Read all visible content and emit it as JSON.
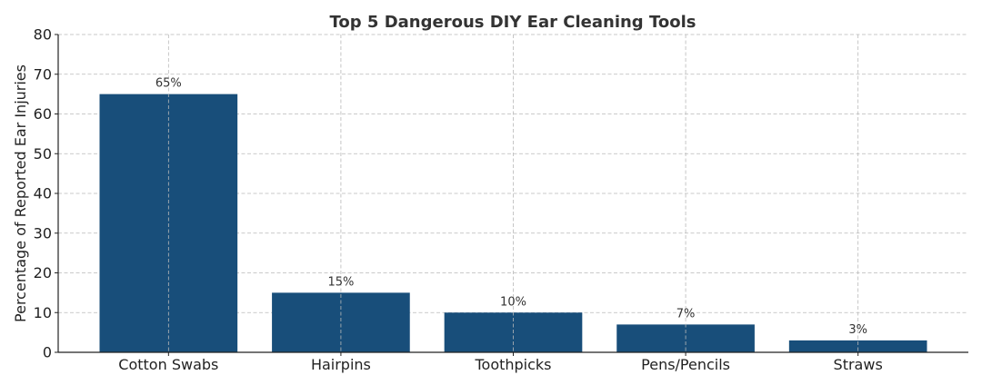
{
  "chart_data": {
    "type": "bar",
    "title": "Top 5 Dangerous DIY Ear Cleaning Tools",
    "xlabel": "",
    "ylabel": "Percentage of Reported Ear Injuries",
    "categories": [
      "Cotton Swabs",
      "Hairpins",
      "Toothpicks",
      "Pens/Pencils",
      "Straws"
    ],
    "values": [
      65,
      15,
      10,
      7,
      3
    ],
    "data_labels": [
      "65%",
      "15%",
      "10%",
      "7%",
      "3%"
    ],
    "ylim": [
      0,
      80
    ],
    "yticks": [
      0,
      10,
      20,
      30,
      40,
      50,
      60,
      70,
      80
    ],
    "grid": true,
    "legend": "none",
    "bar_color": "#184e7a"
  }
}
